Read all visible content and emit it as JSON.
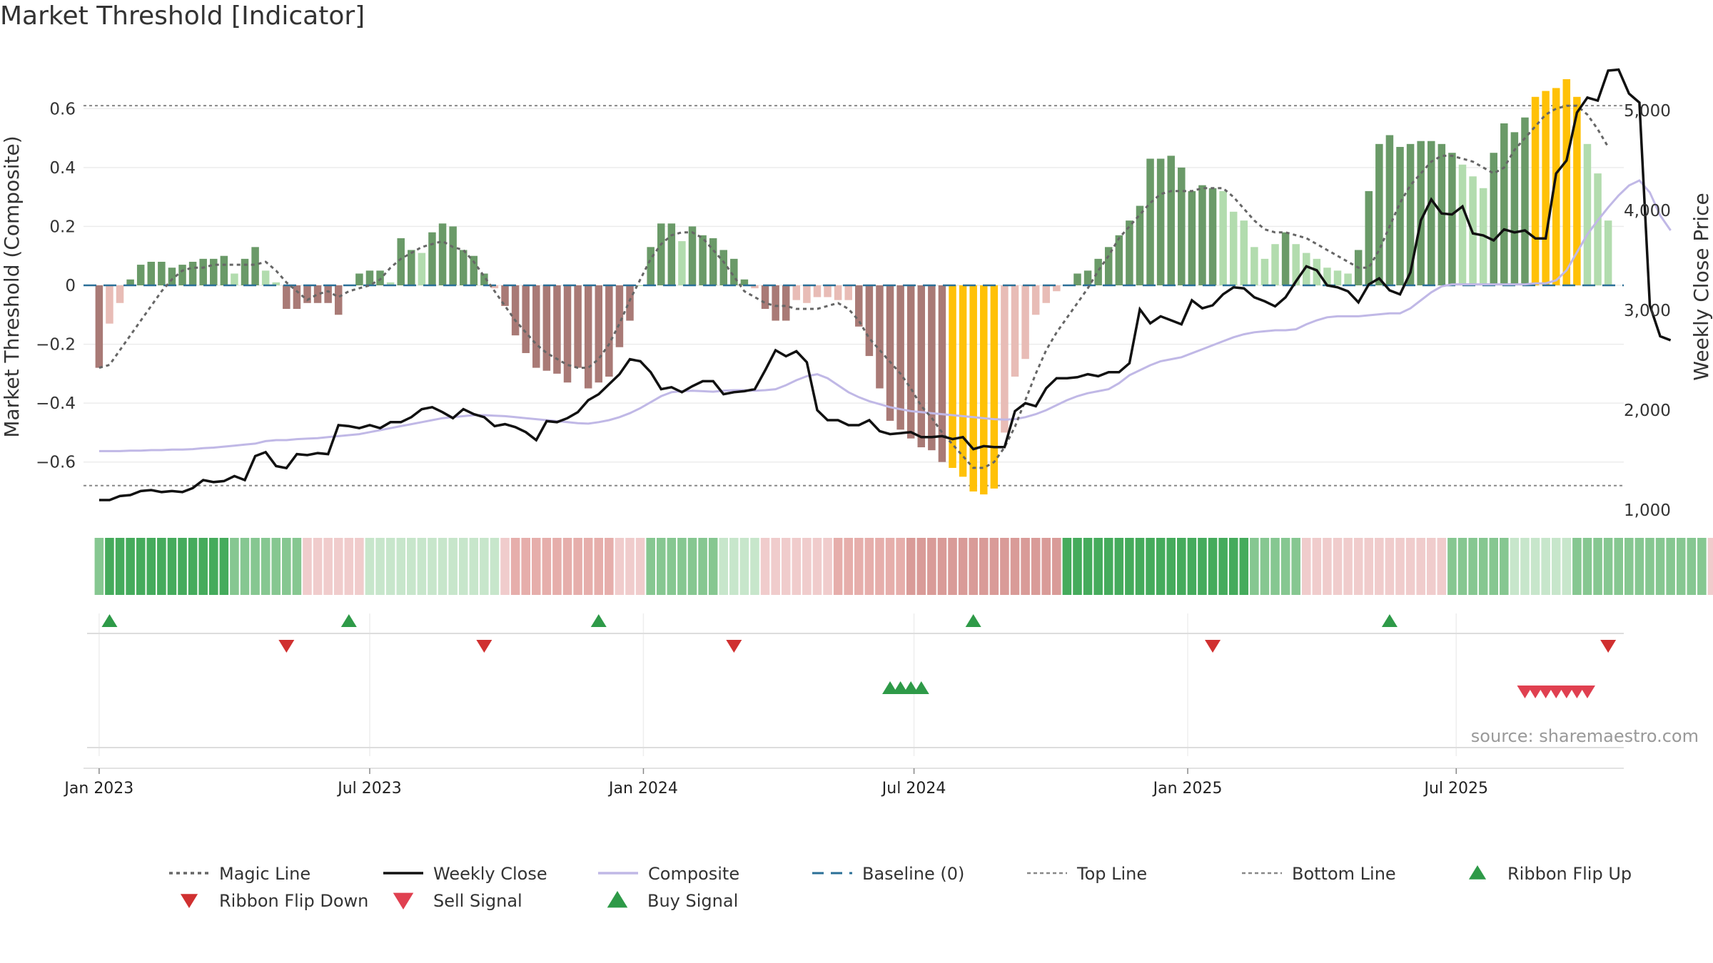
{
  "title": "Market Threshold [Indicator]",
  "source": "source: sharemaestro.com",
  "colors": {
    "strong_up": "#6a9a68",
    "weak_up": "#b2dcae",
    "strong_down": "#a97a76",
    "weak_down": "#e8bcb6",
    "extreme": "#ffc107",
    "magic": "#666666",
    "close": "#111111",
    "composite": "#c0b8e6",
    "baseline": "#2a6f97",
    "threshold": "#888888",
    "flip_up": "#2e9a48",
    "flip_down": "#d03030",
    "sell": "#e04050",
    "buy": "#2e9a48"
  },
  "chart_data": {
    "type": "bar",
    "ylabel_left": "Market Threshold (Composite)",
    "ylabel_right": "Weekly Close Price",
    "ylim_left": [
      -0.78,
      0.78
    ],
    "ylim_right": [
      950,
      5550
    ],
    "yticks_left": [
      {
        "v": 0.6,
        "label": "0.6"
      },
      {
        "v": 0.4,
        "label": "0.4"
      },
      {
        "v": 0.2,
        "label": "0.2"
      },
      {
        "v": 0,
        "label": "0"
      },
      {
        "v": -0.2,
        "label": "−0.2"
      },
      {
        "v": -0.4,
        "label": "−0.4"
      },
      {
        "v": -0.6,
        "label": "−0.6"
      }
    ],
    "yticks_right": [
      {
        "v": 5000,
        "label": "5,000"
      },
      {
        "v": 4000,
        "label": "4,000"
      },
      {
        "v": 3000,
        "label": "3,000"
      },
      {
        "v": 2000,
        "label": "2,000"
      },
      {
        "v": 1000,
        "label": "1,000"
      }
    ],
    "xlim_weeks": [
      -1.5,
      146.5
    ],
    "xticks": [
      {
        "week": 0,
        "label": "Jan 2023"
      },
      {
        "week": 26,
        "label": "Jul 2023"
      },
      {
        "week": 52.3,
        "label": "Jan 2024"
      },
      {
        "week": 78.3,
        "label": "Jul 2024"
      },
      {
        "week": 104.6,
        "label": "Jan 2025"
      },
      {
        "week": 130.4,
        "label": "Jul 2025"
      }
    ],
    "top_line": 0.61,
    "bottom_line": -0.68,
    "bars": [
      -0.28,
      -0.13,
      -0.06,
      0.02,
      0.07,
      0.08,
      0.08,
      0.06,
      0.07,
      0.08,
      0.09,
      0.09,
      0.1,
      0.04,
      0.09,
      0.13,
      0.05,
      0.01,
      -0.08,
      -0.08,
      -0.06,
      -0.06,
      -0.06,
      -0.1,
      0.0,
      0.04,
      0.05,
      0.05,
      0.01,
      0.16,
      0.12,
      0.11,
      0.18,
      0.21,
      0.2,
      0.12,
      0.1,
      0.04,
      -0.01,
      -0.07,
      -0.17,
      -0.23,
      -0.28,
      -0.29,
      -0.3,
      -0.33,
      -0.28,
      -0.35,
      -0.33,
      -0.31,
      -0.21,
      -0.12,
      0.0,
      0.13,
      0.21,
      0.21,
      0.15,
      0.2,
      0.17,
      0.16,
      0.12,
      0.09,
      0.02,
      -0.01,
      -0.08,
      -0.12,
      -0.12,
      -0.05,
      -0.06,
      -0.04,
      -0.04,
      -0.05,
      -0.05,
      -0.14,
      -0.24,
      -0.35,
      -0.46,
      -0.49,
      -0.52,
      -0.55,
      -0.56,
      -0.6,
      -0.62,
      -0.65,
      -0.7,
      -0.71,
      -0.69,
      -0.5,
      -0.31,
      -0.25,
      -0.1,
      -0.06,
      -0.02,
      0.0,
      0.04,
      0.05,
      0.09,
      0.13,
      0.17,
      0.22,
      0.27,
      0.43,
      0.43,
      0.44,
      0.4,
      0.32,
      0.34,
      0.33,
      0.32,
      0.25,
      0.22,
      0.13,
      0.09,
      0.14,
      0.18,
      0.14,
      0.11,
      0.09,
      0.06,
      0.05,
      0.04,
      0.12,
      0.32,
      0.48,
      0.51,
      0.47,
      0.48,
      0.49,
      0.49,
      0.48,
      0.45,
      0.41,
      0.37,
      0.33,
      0.45,
      0.55,
      0.52,
      0.57,
      0.64,
      0.66,
      0.67,
      0.7,
      0.64,
      0.48,
      0.38,
      0.22
    ],
    "magic": [
      -0.28,
      -0.27,
      -0.22,
      -0.17,
      -0.12,
      -0.07,
      -0.02,
      0.02,
      0.05,
      0.06,
      0.06,
      0.07,
      0.07,
      0.07,
      0.07,
      0.07,
      0.08,
      0.05,
      0.01,
      -0.02,
      -0.05,
      -0.03,
      -0.02,
      -0.04,
      -0.02,
      -0.01,
      0.0,
      0.02,
      0.06,
      0.09,
      0.11,
      0.13,
      0.14,
      0.15,
      0.13,
      0.12,
      0.08,
      0.03,
      -0.02,
      -0.07,
      -0.12,
      -0.16,
      -0.2,
      -0.23,
      -0.25,
      -0.27,
      -0.28,
      -0.28,
      -0.25,
      -0.2,
      -0.13,
      -0.05,
      0.02,
      0.09,
      0.14,
      0.17,
      0.18,
      0.18,
      0.16,
      0.12,
      0.08,
      0.03,
      -0.02,
      -0.04,
      -0.06,
      -0.07,
      -0.07,
      -0.08,
      -0.08,
      -0.08,
      -0.07,
      -0.06,
      -0.08,
      -0.12,
      -0.18,
      -0.22,
      -0.26,
      -0.3,
      -0.35,
      -0.41,
      -0.45,
      -0.5,
      -0.54,
      -0.58,
      -0.62,
      -0.62,
      -0.6,
      -0.55,
      -0.48,
      -0.39,
      -0.3,
      -0.22,
      -0.16,
      -0.11,
      -0.06,
      -0.01,
      0.05,
      0.1,
      0.16,
      0.2,
      0.24,
      0.28,
      0.31,
      0.32,
      0.32,
      0.32,
      0.33,
      0.33,
      0.33,
      0.3,
      0.26,
      0.22,
      0.19,
      0.18,
      0.18,
      0.17,
      0.16,
      0.14,
      0.12,
      0.1,
      0.08,
      0.06,
      0.06,
      0.12,
      0.2,
      0.28,
      0.34,
      0.38,
      0.42,
      0.44,
      0.44,
      0.43,
      0.42,
      0.4,
      0.38,
      0.4,
      0.46,
      0.5,
      0.54,
      0.58,
      0.6,
      0.61,
      0.61,
      0.58,
      0.53,
      0.47
    ],
    "close": [
      1100,
      1100,
      1140,
      1150,
      1190,
      1200,
      1180,
      1190,
      1180,
      1220,
      1300,
      1280,
      1290,
      1340,
      1300,
      1540,
      1580,
      1440,
      1420,
      1560,
      1550,
      1570,
      1560,
      1850,
      1840,
      1820,
      1850,
      1820,
      1880,
      1880,
      1930,
      2010,
      2030,
      1980,
      1920,
      2010,
      1960,
      1930,
      1840,
      1860,
      1830,
      1780,
      1700,
      1890,
      1880,
      1920,
      1980,
      2100,
      2160,
      2260,
      2360,
      2510,
      2490,
      2380,
      2210,
      2230,
      2180,
      2240,
      2290,
      2290,
      2160,
      2180,
      2190,
      2210,
      2400,
      2600,
      2540,
      2590,
      2480,
      2000,
      1900,
      1900,
      1850,
      1850,
      1900,
      1790,
      1760,
      1770,
      1780,
      1730,
      1730,
      1740,
      1710,
      1730,
      1610,
      1640,
      1630,
      1630,
      1990,
      2070,
      2040,
      2220,
      2320,
      2320,
      2330,
      2360,
      2340,
      2380,
      2380,
      2470,
      3010,
      2870,
      2940,
      2900,
      2860,
      3100,
      3020,
      3050,
      3160,
      3230,
      3220,
      3130,
      3090,
      3040,
      3130,
      3290,
      3440,
      3400,
      3250,
      3230,
      3190,
      3080,
      3260,
      3320,
      3200,
      3160,
      3380,
      3900,
      4110,
      3970,
      3960,
      4040,
      3770,
      3750,
      3700,
      3810,
      3780,
      3800,
      3720,
      3720,
      4370,
      4500,
      4980,
      5130,
      5100,
      5400,
      5410,
      5170,
      5080,
      3050,
      2740,
      2700
    ],
    "composite": [
      1590,
      1590,
      1590,
      1595,
      1595,
      1600,
      1600,
      1605,
      1605,
      1610,
      1620,
      1625,
      1635,
      1645,
      1655,
      1665,
      1690,
      1700,
      1700,
      1710,
      1715,
      1720,
      1730,
      1740,
      1750,
      1760,
      1780,
      1800,
      1820,
      1840,
      1860,
      1880,
      1900,
      1920,
      1930,
      1940,
      1950,
      1950,
      1945,
      1940,
      1930,
      1920,
      1910,
      1900,
      1890,
      1880,
      1870,
      1865,
      1880,
      1900,
      1930,
      1970,
      2020,
      2080,
      2140,
      2180,
      2190,
      2195,
      2190,
      2185,
      2195,
      2200,
      2200,
      2195,
      2200,
      2210,
      2250,
      2300,
      2340,
      2360,
      2320,
      2250,
      2180,
      2130,
      2090,
      2060,
      2030,
      2010,
      1990,
      1980,
      1970,
      1960,
      1950,
      1940,
      1930,
      1920,
      1910,
      1905,
      1910,
      1930,
      1960,
      2000,
      2050,
      2100,
      2140,
      2170,
      2190,
      2210,
      2270,
      2350,
      2400,
      2450,
      2490,
      2510,
      2530,
      2570,
      2610,
      2650,
      2690,
      2730,
      2760,
      2780,
      2790,
      2800,
      2800,
      2810,
      2860,
      2900,
      2930,
      2940,
      2940,
      2940,
      2950,
      2960,
      2970,
      2970,
      3020,
      3100,
      3180,
      3240,
      3260,
      3260,
      3260,
      3260,
      3260,
      3260,
      3260,
      3260,
      3270,
      3270,
      3300,
      3400,
      3580,
      3760,
      3900,
      4030,
      4150,
      4250,
      4300,
      4180,
      3950,
      3800
    ],
    "ribbon": [
      2,
      3,
      3,
      3,
      3,
      3,
      3,
      3,
      3,
      3,
      3,
      3,
      3,
      2,
      2,
      2,
      2,
      2,
      2,
      2,
      -1,
      -1,
      -1,
      -1,
      -1,
      -1,
      1,
      1,
      1,
      1,
      1,
      1,
      1,
      1,
      1,
      1,
      1,
      1,
      1,
      -1,
      -2,
      -2,
      -2,
      -2,
      -2,
      -2,
      -2,
      -2,
      -2,
      -2,
      -1,
      -1,
      -1,
      2,
      2,
      2,
      2,
      2,
      2,
      2,
      1,
      1,
      1,
      1,
      -1,
      -1,
      -1,
      -1,
      -1,
      -1,
      -1,
      -2,
      -2,
      -2,
      -2,
      -2,
      -2,
      -2,
      -3,
      -3,
      -3,
      -3,
      -3,
      -3,
      -3,
      -3,
      -3,
      -3,
      -3,
      -3,
      -3,
      -3,
      -3,
      3,
      3,
      3,
      3,
      3,
      3,
      3,
      3,
      3,
      3,
      3,
      3,
      3,
      3,
      3,
      3,
      3,
      3,
      2,
      2,
      2,
      2,
      2,
      -1,
      -1,
      -1,
      -1,
      -1,
      -1,
      -1,
      -1,
      -1,
      -1,
      -1,
      -1,
      -1,
      -1,
      2,
      2,
      2,
      2,
      2,
      2,
      1,
      1,
      1,
      1,
      1,
      1,
      2,
      2,
      2,
      2,
      2,
      2,
      2,
      2,
      2,
      2,
      2,
      2,
      2,
      -1
    ],
    "ribbon_flip_up_weeks": [
      1,
      24,
      48,
      84,
      124
    ],
    "ribbon_flip_down_weeks": [
      18,
      37,
      61,
      107,
      145
    ],
    "buy_signal_weeks": [
      76,
      77,
      78,
      79
    ],
    "sell_signal_weeks": [
      137,
      138,
      139,
      140,
      141,
      142,
      143
    ],
    "legend": [
      {
        "key": "magic",
        "label": "Magic Line"
      },
      {
        "key": "close",
        "label": "Weekly Close"
      },
      {
        "key": "composite",
        "label": "Composite"
      },
      {
        "key": "baseline",
        "label": "Baseline (0)"
      },
      {
        "key": "top",
        "label": "Top Line"
      },
      {
        "key": "bottom",
        "label": "Bottom Line"
      },
      {
        "key": "flip_up",
        "label": "Ribbon Flip Up"
      },
      {
        "key": "flip_down",
        "label": "Ribbon Flip Down"
      },
      {
        "key": "sell",
        "label": "Sell Signal"
      },
      {
        "key": "buy",
        "label": "Buy Signal"
      }
    ]
  }
}
